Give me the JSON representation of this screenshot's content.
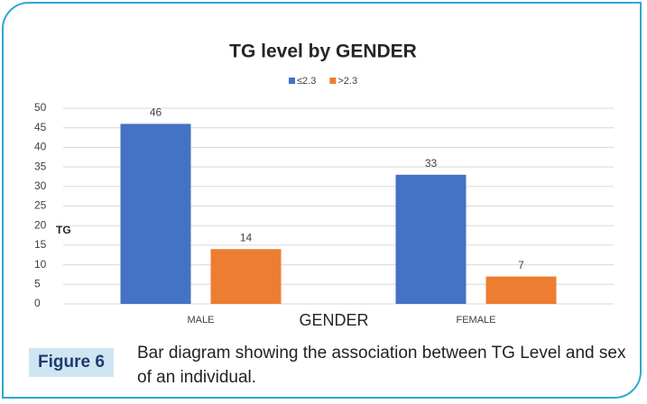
{
  "chart_data": {
    "type": "bar",
    "title": "TG level by GENDER",
    "x_label": "GENDER",
    "y_label": "TG",
    "categories": [
      "MALE",
      "FEMALE"
    ],
    "series": [
      {
        "name": "≤2.3",
        "color": "#4472c4",
        "values": [
          46,
          33
        ]
      },
      {
        "name": ">2.3",
        "color": "#ed7d31",
        "values": [
          14,
          7
        ]
      }
    ],
    "ylim": [
      0,
      50
    ],
    "yticks": [
      0,
      5,
      10,
      15,
      20,
      25,
      30,
      35,
      40,
      45,
      50
    ],
    "grid": true,
    "legend": "top"
  },
  "figure_label": "Figure 6",
  "caption": "Bar diagram showing the association between TG Level and sex of an individual."
}
